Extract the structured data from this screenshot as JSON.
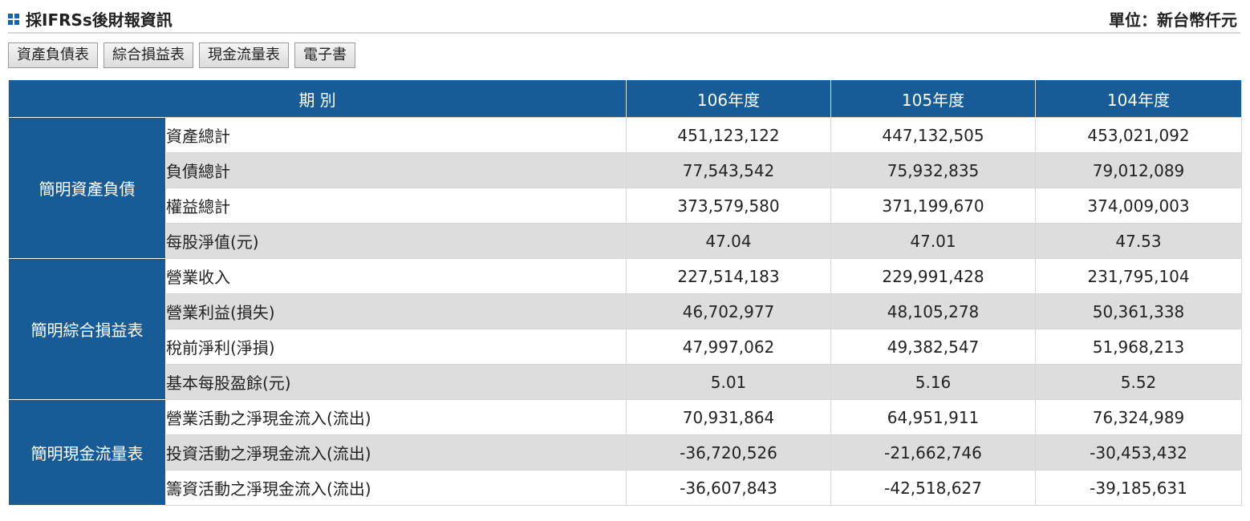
{
  "header": {
    "title": "採IFRSs後財報資訊",
    "unit": "單位：新台幣仟元"
  },
  "tabs": [
    "資產負債表",
    "綜合損益表",
    "現金流量表",
    "電子書"
  ],
  "table": {
    "period_header": "期 別",
    "years": [
      "106年度",
      "105年度",
      "104年度"
    ],
    "groups": [
      {
        "name": "簡明資產負債",
        "rows": [
          {
            "label": "資產總計",
            "values": [
              "451,123,122",
              "447,132,505",
              "453,021,092"
            ]
          },
          {
            "label": "負債總計",
            "values": [
              "77,543,542",
              "75,932,835",
              "79,012,089"
            ]
          },
          {
            "label": "權益總計",
            "values": [
              "373,579,580",
              "371,199,670",
              "374,009,003"
            ]
          },
          {
            "label": "每股淨值(元)",
            "values": [
              "47.04",
              "47.01",
              "47.53"
            ]
          }
        ]
      },
      {
        "name": "簡明綜合損益表",
        "rows": [
          {
            "label": "營業收入",
            "values": [
              "227,514,183",
              "229,991,428",
              "231,795,104"
            ]
          },
          {
            "label": "營業利益(損失)",
            "values": [
              "46,702,977",
              "48,105,278",
              "50,361,338"
            ]
          },
          {
            "label": "稅前淨利(淨損)",
            "values": [
              "47,997,062",
              "49,382,547",
              "51,968,213"
            ]
          },
          {
            "label": "基本每股盈餘(元)",
            "values": [
              "5.01",
              "5.16",
              "5.52"
            ]
          }
        ]
      },
      {
        "name": "簡明現金流量表",
        "rows": [
          {
            "label": "營業活動之淨現金流入(流出)",
            "values": [
              "70,931,864",
              "64,951,911",
              "76,324,989"
            ]
          },
          {
            "label": "投資活動之淨現金流入(流出)",
            "values": [
              "-36,720,526",
              "-21,662,746",
              "-30,453,432"
            ]
          },
          {
            "label": "籌資活動之淨現金流入(流出)",
            "values": [
              "-36,607,843",
              "-42,518,627",
              "-39,185,631"
            ]
          }
        ]
      }
    ]
  },
  "colors": {
    "header_bg": "#175c96",
    "stripe": "#dddddd",
    "icon": "#1b63a8"
  }
}
